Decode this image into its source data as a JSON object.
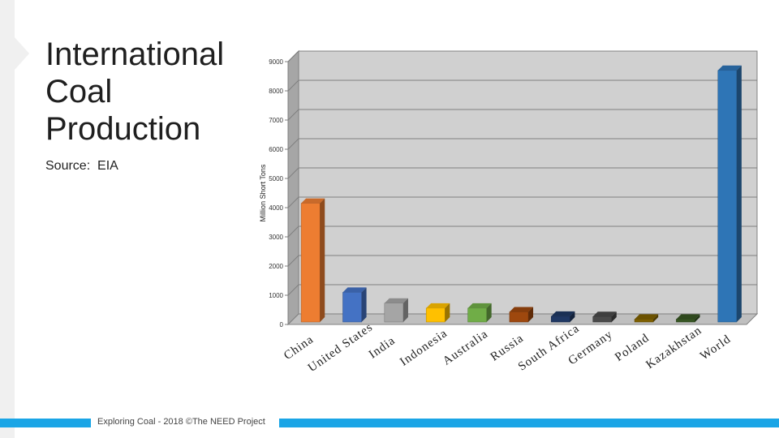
{
  "slide": {
    "title_lines": [
      "International",
      "Coal",
      "Production"
    ],
    "source": "Source:  EIA",
    "footer": "Exploring Coal - 2018 ©The NEED Project"
  },
  "chart_data": {
    "type": "bar",
    "ylabel": "Million Short Tons",
    "ylim": [
      0,
      9000
    ],
    "yticks": [
      0,
      1000,
      2000,
      3000,
      4000,
      5000,
      6000,
      7000,
      8000,
      9000
    ],
    "grid": true,
    "categories": [
      "China",
      "United States",
      "India",
      "Indonesia",
      "Australia",
      "Russia",
      "South Africa",
      "Germany",
      "Poland",
      "Kazakhstan",
      "World"
    ],
    "values": [
      4150,
      1100,
      730,
      560,
      560,
      430,
      280,
      270,
      180,
      180,
      8700
    ],
    "colors": [
      "#ed7d31",
      "#4472c4",
      "#a5a5a5",
      "#ffc000",
      "#70ad47",
      "#9e480e",
      "#1f3864",
      "#4a4a4a",
      "#7f6000",
      "#375623",
      "#2e75b6"
    ]
  }
}
